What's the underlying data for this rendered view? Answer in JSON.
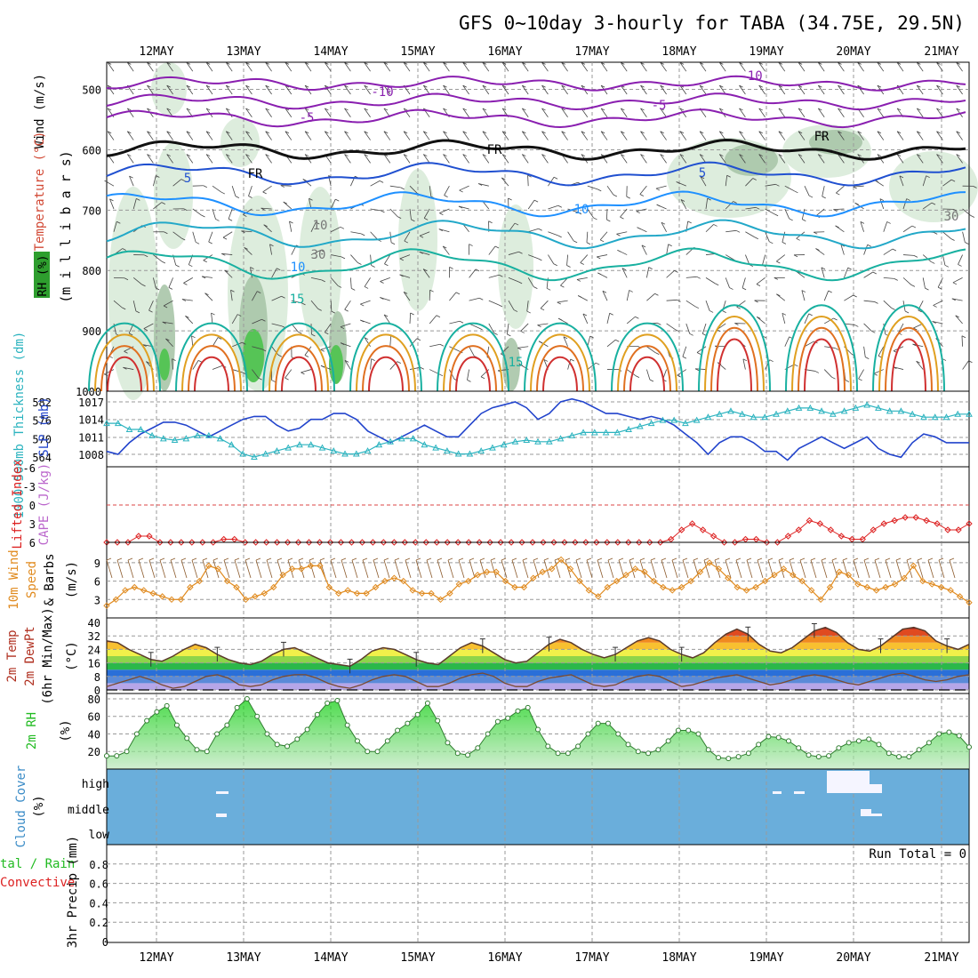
{
  "title": "GFS 0~10day 3-hourly for TABA (34.75E, 29.5N)",
  "dates": [
    "12MAY",
    "13MAY",
    "14MAY",
    "15MAY",
    "16MAY",
    "17MAY",
    "18MAY",
    "19MAY",
    "20MAY",
    "21MAY"
  ],
  "colors": {
    "grid": "#999999",
    "rh_fill": "#2e9e2e",
    "thickness": "#2bb3bf",
    "slp": "#2244cc",
    "lifted": "#dd2222",
    "wind": "#e08a1e",
    "rh2m": "#22bb22",
    "cloud": "#6aaedb",
    "cape": "#bb66cc"
  },
  "upper_panel": {
    "axis_label": "(m i l l i b a r s)",
    "side_labels": [
      "Wind (m/s)",
      "Temperature (°C)",
      "RH (%)"
    ],
    "y_ticks": [
      "500",
      "600",
      "700",
      "800",
      "900",
      "1000"
    ],
    "contour_labels": [
      "-10",
      "-10",
      "-5",
      "-5",
      "FR",
      "FR",
      "FR",
      "5",
      "5",
      "10",
      "10",
      "15",
      "15",
      "30",
      "30",
      "10"
    ]
  },
  "panels": {
    "slp": {
      "left_label": "1000-500mb Thickness (dm)",
      "right_label": "SLP (mb)",
      "left_ticks": [
        "582",
        "576",
        "570",
        "564"
      ],
      "right_ticks": [
        "1017",
        "1014",
        "1011",
        "1008"
      ]
    },
    "li": {
      "left_label": "Lifted Index",
      "right_label": "CAPE (J/kg)",
      "ticks": [
        "-6",
        "-3",
        "0",
        "3",
        "6"
      ]
    },
    "wind": {
      "label1": "10m Wind",
      "label2": "Speed",
      "label3": "& Barbs",
      "unit": "(m/s)",
      "ticks": [
        "9",
        "6",
        "3"
      ]
    },
    "temp": {
      "label1": "2m Temp",
      "label2": "2m DewPt",
      "label3": "(6hr Min/Max)",
      "unit": "(°C)",
      "ticks": [
        "40",
        "32",
        "24",
        "16",
        "8",
        "0"
      ]
    },
    "rh": {
      "label": "2m RH",
      "unit": "(%)",
      "ticks": [
        "80",
        "60",
        "40",
        "20"
      ]
    },
    "cloud": {
      "label": "Cloud Cover",
      "unit": "(%)",
      "ticks": [
        "high",
        "middle",
        "low"
      ]
    },
    "precip": {
      "label1": "tal / Rain",
      "label2": "Convective",
      "unit": "3hr Precip (mm)",
      "ticks": [
        "0.8",
        "0.6",
        "0.4",
        "0.2",
        "0"
      ],
      "run_total": "Run Total = 0"
    }
  },
  "chart_data": [
    {
      "type": "line",
      "name": "slp_thickness",
      "series": [
        {
          "name": "SLP (mb)",
          "values": [
            1008.5,
            1008,
            1010,
            1011.5,
            1012.5,
            1013.5,
            1013.5,
            1013,
            1012,
            1011,
            1012,
            1013,
            1014,
            1014.5,
            1014.5,
            1013,
            1012,
            1012.5,
            1014,
            1014,
            1015,
            1015,
            1014,
            1012,
            1011,
            1010,
            1011,
            1012,
            1013,
            1012,
            1011,
            1011,
            1013,
            1015,
            1016,
            1016.5,
            1017,
            1016,
            1014,
            1015,
            1017,
            1017.5,
            1017,
            1016,
            1015,
            1015,
            1014.5,
            1014,
            1014.5,
            1014,
            1013,
            1011.5,
            1010,
            1008,
            1010,
            1011,
            1011,
            1010,
            1008.5,
            1008.5,
            1007,
            1009,
            1010,
            1011,
            1010,
            1009,
            1010,
            1011,
            1009,
            1008,
            1007.5,
            1010,
            1011.5,
            1011,
            1010,
            1010,
            1010
          ]
        },
        {
          "name": "1000-500mb Thickness (dm)",
          "values": [
            575,
            575,
            573,
            573,
            571,
            570,
            569.5,
            570,
            571,
            571,
            570,
            568,
            565,
            564,
            565,
            566,
            567,
            568,
            568,
            567,
            566,
            565,
            565,
            566,
            568,
            569,
            570,
            570,
            568,
            567,
            566,
            565,
            565,
            566,
            567,
            568,
            569,
            569.5,
            569,
            569,
            570,
            571,
            572,
            572,
            572,
            572,
            573,
            574,
            575,
            576,
            576,
            575,
            576,
            577,
            578,
            579,
            578,
            577,
            577,
            578,
            579,
            580,
            580,
            579,
            578,
            579,
            580,
            581,
            580,
            579,
            579,
            578,
            577,
            577,
            577,
            578,
            578
          ]
        }
      ]
    },
    {
      "type": "line",
      "name": "lifted_index",
      "series": [
        {
          "name": "Lifted Index",
          "values": [
            6,
            6,
            6,
            5,
            5,
            6,
            6,
            6,
            6,
            6,
            6,
            5.5,
            5.5,
            6,
            6,
            6,
            6,
            6,
            6,
            6,
            6,
            6,
            6,
            6,
            6,
            6,
            6,
            6,
            6,
            6,
            6,
            6,
            6,
            6,
            6,
            6,
            6,
            6,
            6,
            6,
            6,
            6,
            6,
            6,
            6,
            6,
            6,
            6,
            6,
            6,
            6,
            6,
            6,
            5.5,
            4,
            3,
            4,
            5,
            6,
            6,
            5.5,
            5.5,
            6,
            6,
            5,
            4,
            2.5,
            3,
            4,
            5,
            5.5,
            5.5,
            4,
            3,
            2.5,
            2,
            2,
            2.5,
            3,
            4,
            4,
            3
          ]
        }
      ]
    },
    {
      "type": "line",
      "name": "wind_speed",
      "series": [
        {
          "name": "10m Wind Speed (m/s)",
          "values": [
            2,
            3,
            4.5,
            5,
            4.5,
            4,
            3.5,
            3,
            3,
            5,
            6,
            8.5,
            8,
            6,
            5,
            3,
            3.5,
            4,
            5,
            7,
            8,
            8,
            8.5,
            8.5,
            5,
            4,
            4.5,
            4,
            4,
            5,
            6,
            6.5,
            6,
            4.5,
            4,
            4,
            3,
            4,
            5.5,
            6,
            7,
            7.5,
            7.5,
            6,
            5,
            5,
            6.5,
            7.5,
            8,
            9.5,
            8,
            6,
            4.5,
            3.5,
            5,
            6,
            7,
            8,
            7.5,
            6,
            5,
            4.5,
            5,
            6,
            7.5,
            9,
            8,
            6.5,
            5,
            4.5,
            5,
            6,
            7,
            8,
            7,
            6,
            4.5,
            3,
            5,
            7.5,
            7,
            5.5,
            5,
            4.5,
            5,
            5.5,
            6.5,
            8.5,
            6,
            5.5,
            5,
            4.5,
            3.5,
            2.5
          ]
        }
      ]
    },
    {
      "type": "line",
      "name": "temperature",
      "series": [
        {
          "name": "2m Temp (°C)",
          "values": [
            29,
            28,
            24,
            21,
            18,
            17,
            20,
            24,
            27,
            25,
            21,
            18,
            16,
            15,
            17,
            21,
            24,
            25,
            22,
            19,
            16,
            15,
            14,
            18,
            23,
            25,
            24,
            21,
            18,
            16,
            15,
            20,
            25,
            28,
            26,
            22,
            18,
            16,
            17,
            22,
            27,
            30,
            28,
            24,
            21,
            19,
            21,
            25,
            29,
            31,
            29,
            24,
            21,
            19,
            22,
            28,
            33,
            36,
            33,
            27,
            23,
            22,
            25,
            30,
            35,
            37,
            34,
            28,
            24,
            23,
            26,
            31,
            36,
            37,
            35,
            29,
            26,
            24,
            27
          ]
        },
        {
          "name": "2m DewPt (°C)",
          "values": [
            2,
            4,
            6,
            8,
            6,
            3,
            1,
            2,
            5,
            8,
            9,
            7,
            3,
            2,
            3,
            6,
            8,
            9,
            9,
            7,
            4,
            2,
            1,
            3,
            6,
            8,
            9,
            8,
            5,
            2,
            2,
            4,
            7,
            9,
            10,
            8,
            4,
            2,
            2,
            5,
            7,
            8,
            9,
            6,
            3,
            2,
            3,
            6,
            8,
            9,
            8,
            5,
            2,
            3,
            5,
            7,
            8,
            9,
            7,
            5,
            3,
            4,
            6,
            8,
            9,
            8,
            6,
            4,
            3,
            5,
            7,
            9,
            10,
            8,
            6,
            5,
            6,
            8,
            9
          ]
        }
      ]
    },
    {
      "type": "area",
      "name": "rh_2m",
      "series": [
        {
          "name": "2m RH (%)",
          "values": [
            15,
            15,
            20,
            40,
            55,
            65,
            72,
            50,
            35,
            22,
            20,
            40,
            50,
            70,
            80,
            60,
            40,
            28,
            26,
            34,
            45,
            62,
            75,
            78,
            50,
            32,
            20,
            20,
            32,
            44,
            52,
            62,
            75,
            55,
            30,
            18,
            16,
            24,
            40,
            54,
            58,
            66,
            70,
            45,
            26,
            18,
            18,
            26,
            40,
            52,
            52,
            40,
            28,
            20,
            18,
            22,
            32,
            44,
            44,
            40,
            22,
            13,
            12,
            14,
            18,
            28,
            37,
            36,
            32,
            24,
            16,
            14,
            15,
            24,
            30,
            32,
            34,
            28,
            18,
            14,
            14,
            22,
            30,
            40,
            42,
            38,
            25
          ]
        }
      ]
    },
    {
      "type": "bar",
      "name": "precip",
      "series": [
        {
          "name": "3hr Precip (mm)",
          "values": []
        }
      ],
      "ylim": [
        0,
        1
      ]
    }
  ]
}
